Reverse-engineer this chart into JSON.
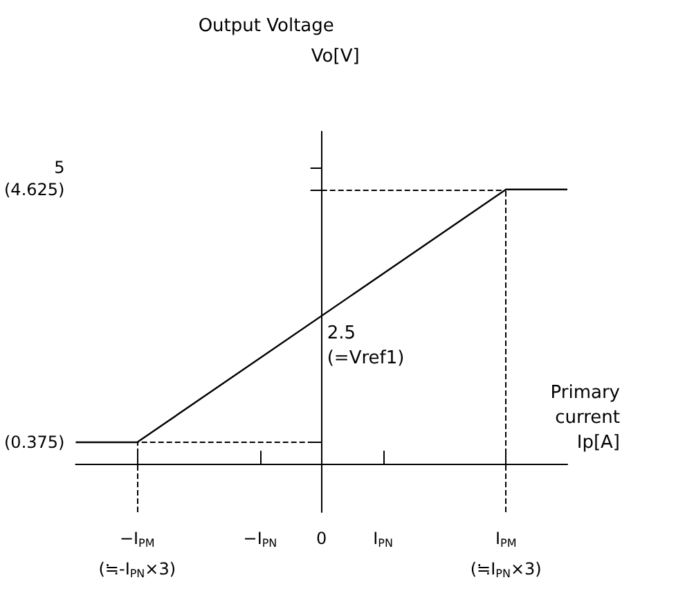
{
  "chart_data": {
    "type": "line",
    "title": "Output Voltage",
    "ylabel": "Vo[V]",
    "xlabel": "Primary\ncurrent\nIp[A]",
    "x": [
      -4,
      -3,
      3,
      4
    ],
    "series": [
      {
        "color": "#000000",
        "values": [
          0.375,
          0.375,
          4.625,
          4.625
        ]
      }
    ],
    "xlim": [
      -4,
      4
    ],
    "xticks": [
      {
        "value": -3,
        "label": "−I$_{PM}$\n(≒-I$_{PN}$×3)"
      },
      {
        "value": -1,
        "label": "−I$_{PN}$"
      },
      0,
      {
        "value": 1,
        "label": "I$_{PN}$"
      },
      {
        "value": 3,
        "label": "I$_{PM}$\n(≒I$_{PN}$×3)"
      }
    ],
    "ylim": [
      -0.8,
      5.6
    ],
    "yticks": [
      {
        "value": 0.375,
        "label": "(0.375)"
      },
      {
        "value": 4.625,
        "label": "(4.625)"
      },
      5
    ],
    "annotations": [
      {
        "text": "2.5\n(=Vref1)",
        "x": 0,
        "y": 2.5
      }
    ],
    "ref_lines": [
      {
        "axis": "y",
        "value": 4.625,
        "color": "#000000",
        "line_style": "dashed"
      },
      {
        "axis": "y",
        "value": 0.375,
        "color": "#000000",
        "line_style": "dashed"
      },
      {
        "axis": "x",
        "value": 3,
        "color": "#000000",
        "line_style": "dashed"
      },
      {
        "axis": "x",
        "value": -3,
        "color": "#000000",
        "line_style": "dashed"
      }
    ],
    "grid": false,
    "marker": "none",
    "line_style": "solid"
  }
}
